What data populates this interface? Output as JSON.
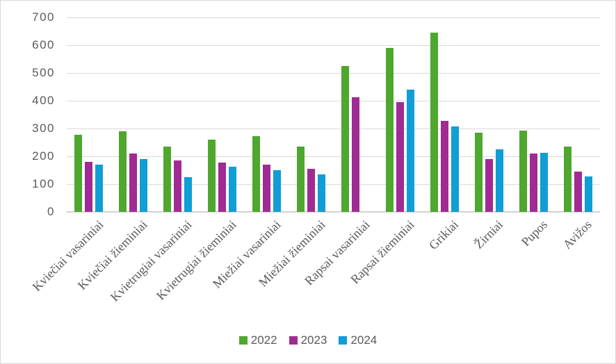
{
  "chart_data": {
    "type": "bar",
    "title": "",
    "xlabel": "",
    "ylabel": "",
    "categories": [
      "Kviečiai vasariniai",
      "Kviečiai žieminiai",
      "Kvietrugiai vasariniai",
      "Kvietrugiai žieminiai",
      "Miežiai vasariniai",
      "Miežiai žieminiai",
      "Rapsai vasariniai",
      "Rapsai žieminiai",
      "Grikiai",
      "Žirniai",
      "Pupos",
      "Avižos"
    ],
    "series": [
      {
        "name": "2022",
        "color": "#4EA72E",
        "values": [
          278,
          289,
          234,
          260,
          273,
          234,
          526,
          589,
          644,
          284,
          293,
          234
        ]
      },
      {
        "name": "2023",
        "color": "#A02B93",
        "values": [
          181,
          209,
          184,
          177,
          171,
          155,
          413,
          394,
          327,
          191,
          211,
          144
        ]
      },
      {
        "name": "2024",
        "color": "#0F9ED5",
        "values": [
          171,
          189,
          126,
          162,
          151,
          134,
          0,
          440,
          308,
          224,
          213,
          127
        ]
      }
    ],
    "ylim": [
      0,
      700
    ],
    "yticks": [
      "0",
      "100",
      "200",
      "300",
      "400",
      "500",
      "600",
      "700"
    ],
    "grid": true,
    "legend_position": "bottom"
  },
  "colors": {
    "gridline": "#D9D9D9",
    "axis_baseline": "#D2D2D2",
    "axis_text": "#595959",
    "chart_border": "#D8D8D8",
    "background": "#FFFFFF"
  }
}
